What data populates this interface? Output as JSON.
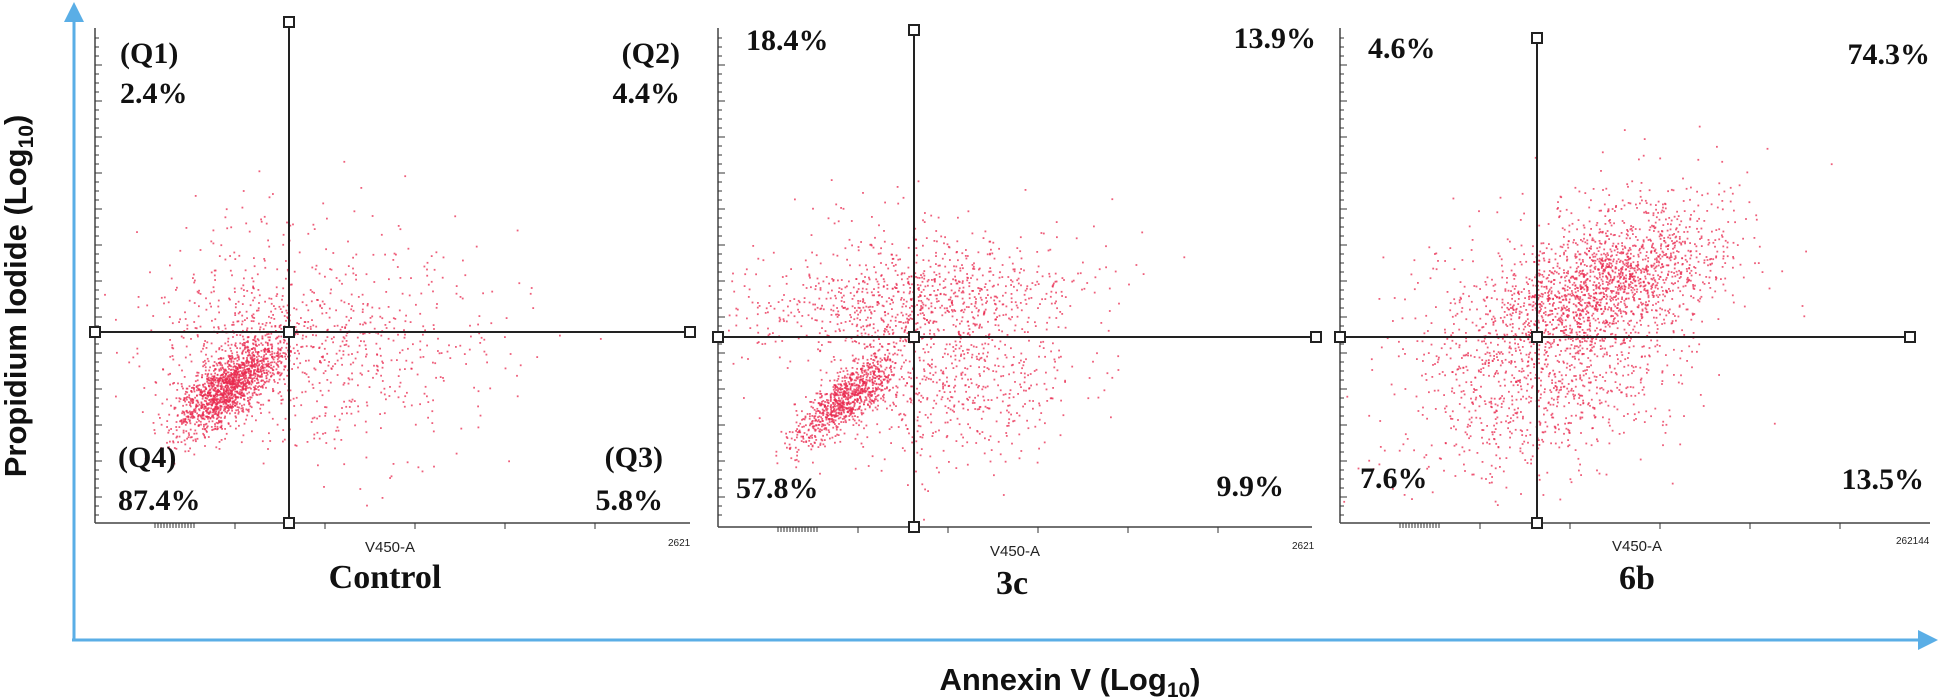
{
  "figure": {
    "xlabel_main": "Annexin V (Log",
    "xlabel_sub": "10",
    "xlabel_end": ")",
    "ylabel_main": "Propidium Iodide (Log",
    "ylabel_sub": "10",
    "ylabel_end": ")",
    "colors": {
      "dots": "#e8294f",
      "axis_arrow": "#5aaee6",
      "lines": "#222222"
    }
  },
  "chart_data": [
    {
      "type": "scatter",
      "title": "Control",
      "channel_label": "V450-A",
      "max_tick_label": "2621",
      "quadrants": {
        "Q1": {
          "tag": "(Q1)",
          "value": "2.4%"
        },
        "Q2": {
          "tag": "(Q2)",
          "value": "4.4%"
        },
        "Q3": {
          "tag": "(Q3)",
          "value": "5.8%"
        },
        "Q4": {
          "tag": "(Q4)",
          "value": "87.4%"
        }
      }
    },
    {
      "type": "scatter",
      "title": "3c",
      "channel_label": "V450-A",
      "max_tick_label": "2621",
      "quadrants": {
        "Q1": {
          "value": "18.4%"
        },
        "Q2": {
          "value": "13.9%"
        },
        "Q3": {
          "value": "9.9%"
        },
        "Q4": {
          "value": "57.8%"
        }
      }
    },
    {
      "type": "scatter",
      "title": "6b",
      "channel_label": "V450-A",
      "max_tick_label": "262144",
      "quadrants": {
        "Q1": {
          "value": "4.6%"
        },
        "Q2": {
          "value": "74.3%"
        },
        "Q3": {
          "value": "13.5%"
        },
        "Q4": {
          "value": "7.6%"
        }
      }
    }
  ]
}
